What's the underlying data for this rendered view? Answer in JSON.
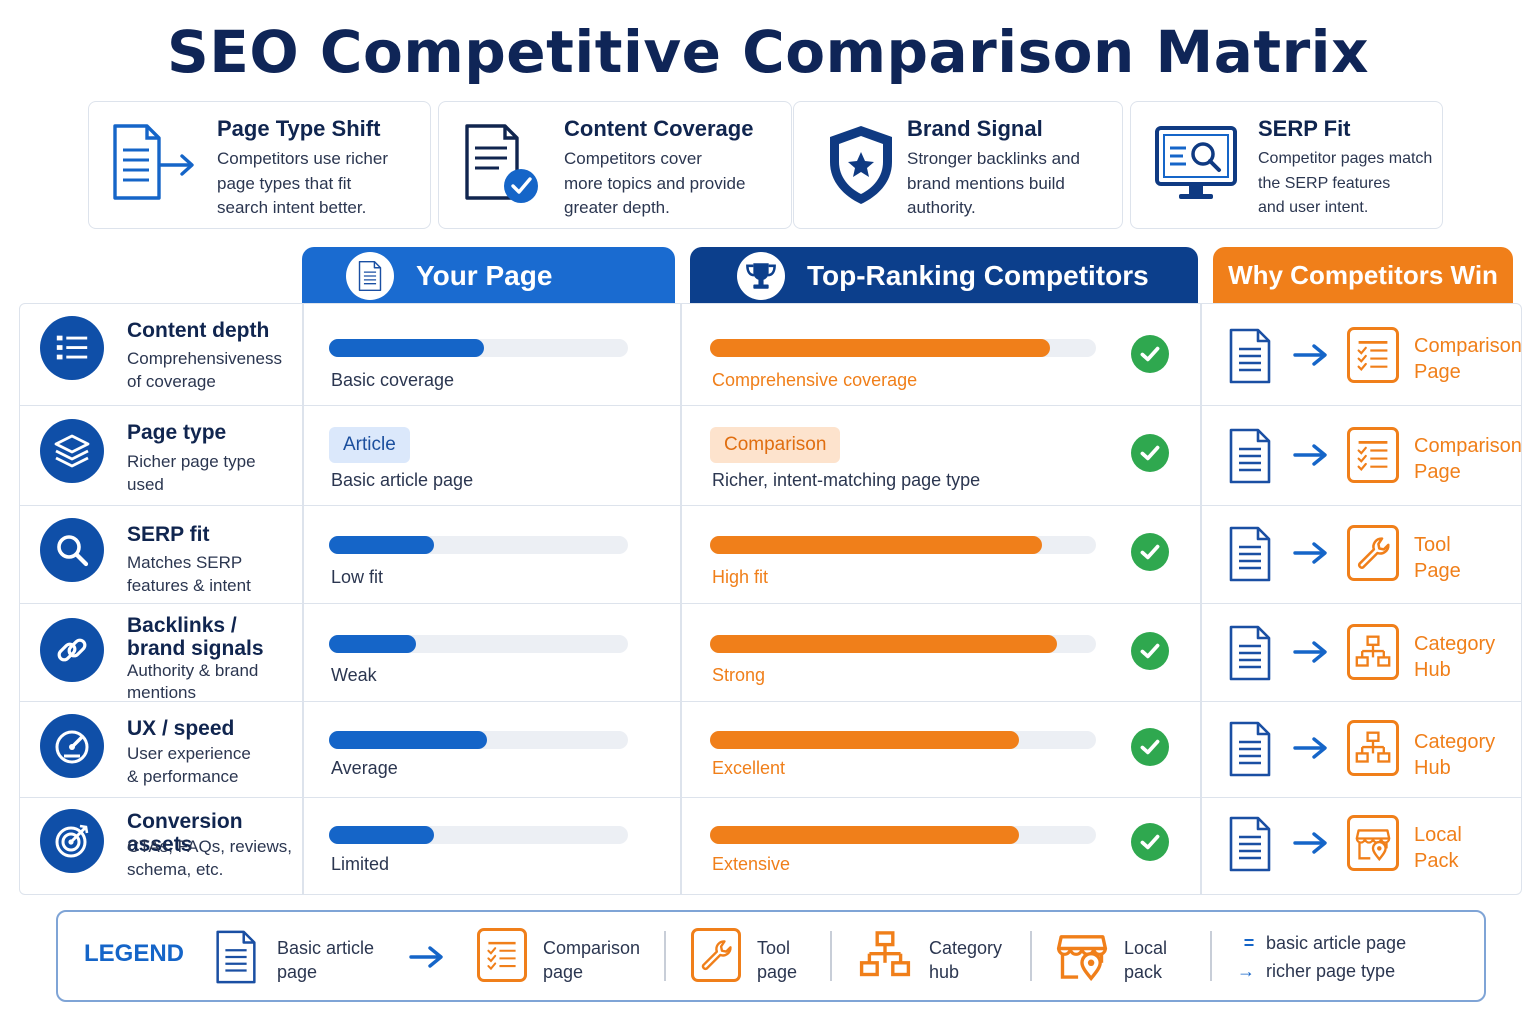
{
  "title": "SEO Competitive Comparison Matrix",
  "colors": {
    "navy": "#0f2557",
    "blue": "#1565c8",
    "dark_blue": "#0c3f8c",
    "orange": "#f07f1a",
    "green": "#2fa84f"
  },
  "cards": [
    {
      "icon": "document-arrow-icon",
      "title": "Page Type Shift",
      "lines": [
        "Competitors use richer",
        "page types that fit",
        "search intent better."
      ]
    },
    {
      "icon": "document-check-icon",
      "title": "Content Coverage",
      "lines": [
        "Competitors cover",
        "more topics and provide",
        "greater depth."
      ]
    },
    {
      "icon": "shield-star-icon",
      "title": "Brand Signal",
      "lines": [
        "Stronger backlinks and",
        "brand mentions build",
        "authority."
      ]
    },
    {
      "icon": "monitor-search-icon",
      "title": "SERP Fit",
      "lines": [
        "Competitor pages match",
        "the SERP features",
        "and user intent."
      ]
    }
  ],
  "columns": {
    "your_page": "Your Page",
    "competitors": "Top-Ranking Competitors",
    "why": "Why Competitors Win"
  },
  "rows": [
    {
      "icon": "list-icon",
      "name": "Content depth",
      "desc": [
        "Comprehensiveness",
        "of coverage"
      ],
      "your": {
        "fill": 0.52,
        "label": "Basic coverage"
      },
      "comp": {
        "fill": 0.88,
        "label": "Comprehensive coverage"
      },
      "why": {
        "icon": "comparison-page-icon",
        "lines": [
          "Comparison",
          "Page"
        ]
      }
    },
    {
      "icon": "layers-icon",
      "name": "Page type",
      "desc": [
        "Richer page type",
        "used"
      ],
      "your": {
        "pill": "Article",
        "label": "Basic article page"
      },
      "comp": {
        "pill": "Comparison",
        "label": "Richer, intent-matching page type"
      },
      "why": {
        "icon": "comparison-page-icon",
        "lines": [
          "Comparison",
          "Page"
        ]
      }
    },
    {
      "icon": "magnifier-icon",
      "name": "SERP fit",
      "desc": [
        "Matches SERP",
        "features & intent"
      ],
      "your": {
        "fill": 0.35,
        "label": "Low fit"
      },
      "comp": {
        "fill": 0.86,
        "label": "High fit"
      },
      "why": {
        "icon": "wrench-icon",
        "lines": [
          "Tool",
          "Page"
        ]
      }
    },
    {
      "icon": "link-icon",
      "name": "Backlinks / brand signals",
      "desc": [
        "Authority & brand",
        "mentions"
      ],
      "your": {
        "fill": 0.29,
        "label": "Weak"
      },
      "comp": {
        "fill": 0.9,
        "label": "Strong"
      },
      "why": {
        "icon": "hierarchy-icon",
        "lines": [
          "Category",
          "Hub"
        ]
      }
    },
    {
      "icon": "speedometer-icon",
      "name": "UX / speed",
      "desc": [
        "User experience",
        "& performance"
      ],
      "your": {
        "fill": 0.53,
        "label": "Average"
      },
      "comp": {
        "fill": 0.8,
        "label": "Excellent"
      },
      "why": {
        "icon": "hierarchy-icon",
        "lines": [
          "Category",
          "Hub"
        ]
      }
    },
    {
      "icon": "target-icon",
      "name": "Conversion assets",
      "desc": [
        "CTAs, FAQs, reviews,",
        "schema, etc."
      ],
      "your": {
        "fill": 0.35,
        "label": "Limited"
      },
      "comp": {
        "fill": 0.8,
        "label": "Extensive"
      },
      "why": {
        "icon": "storefront-pin-icon",
        "lines": [
          "Local",
          "Pack"
        ]
      }
    }
  ],
  "legend": {
    "label": "LEGEND",
    "items": [
      {
        "icon": "document-icon",
        "lines": [
          "Basic article",
          "page"
        ]
      },
      {
        "icon": "comparison-page-icon",
        "lines": [
          "Comparison",
          "page"
        ]
      },
      {
        "icon": "wrench-icon",
        "lines": [
          "Tool",
          "page"
        ]
      },
      {
        "icon": "hierarchy-icon",
        "lines": [
          "Category",
          "hub"
        ]
      },
      {
        "icon": "storefront-pin-icon",
        "lines": [
          "Local",
          "pack"
        ]
      }
    ],
    "key": [
      {
        "symbol": "=",
        "text": "basic article page"
      },
      {
        "symbol": "→",
        "text": "richer page type"
      }
    ]
  }
}
